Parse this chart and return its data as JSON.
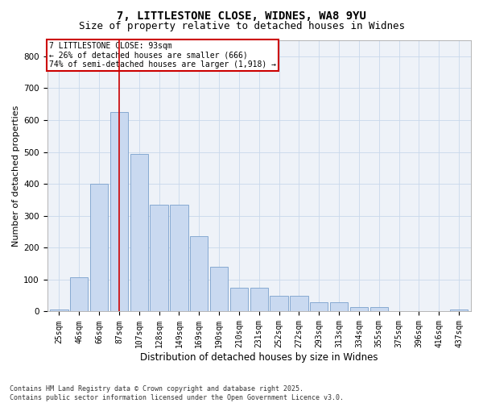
{
  "title_line1": "7, LITTLESTONE CLOSE, WIDNES, WA8 9YU",
  "title_line2": "Size of property relative to detached houses in Widnes",
  "xlabel": "Distribution of detached houses by size in Widnes",
  "ylabel": "Number of detached properties",
  "categories": [
    "25sqm",
    "46sqm",
    "66sqm",
    "87sqm",
    "107sqm",
    "128sqm",
    "149sqm",
    "169sqm",
    "190sqm",
    "210sqm",
    "231sqm",
    "252sqm",
    "272sqm",
    "293sqm",
    "313sqm",
    "334sqm",
    "355sqm",
    "375sqm",
    "396sqm",
    "416sqm",
    "437sqm"
  ],
  "values": [
    5,
    108,
    400,
    625,
    495,
    335,
    335,
    235,
    140,
    75,
    75,
    50,
    50,
    28,
    28,
    15,
    15,
    0,
    0,
    0,
    5
  ],
  "bar_color": "#c9d9f0",
  "bar_edge_color": "#7aa0cc",
  "grid_color": "#c8d8ec",
  "bg_color": "#eef2f8",
  "vline_x_idx": 3,
  "vline_color": "#cc0000",
  "annotation_text": "7 LITTLESTONE CLOSE: 93sqm\n← 26% of detached houses are smaller (666)\n74% of semi-detached houses are larger (1,918) →",
  "annotation_box_color": "#cc0000",
  "ylim": [
    0,
    850
  ],
  "yticks": [
    0,
    100,
    200,
    300,
    400,
    500,
    600,
    700,
    800
  ],
  "footer": "Contains HM Land Registry data © Crown copyright and database right 2025.\nContains public sector information licensed under the Open Government Licence v3.0.",
  "title_fontsize": 10,
  "subtitle_fontsize": 9,
  "axis_label_fontsize": 8,
  "tick_fontsize": 7,
  "annotation_fontsize": 7,
  "footer_fontsize": 6
}
